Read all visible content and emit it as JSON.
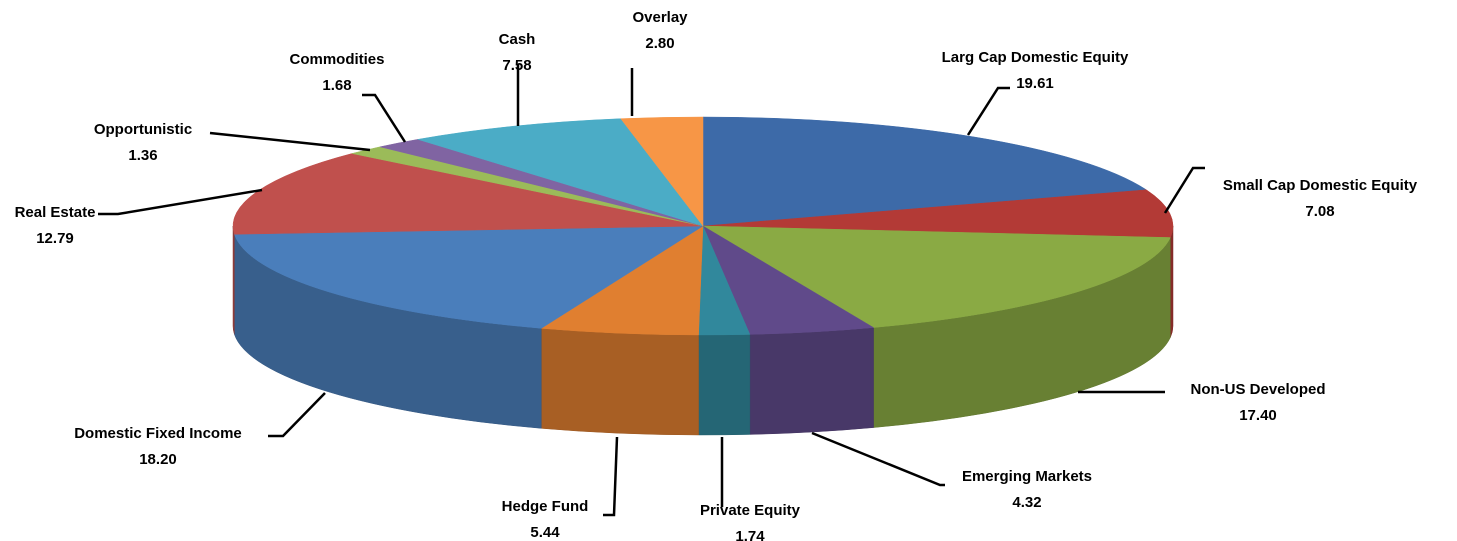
{
  "chart_data": {
    "type": "pie",
    "categories": [
      "Larg Cap Domestic Equity",
      "Small Cap Domestic Equity",
      "Non-US Developed",
      "Emerging Markets",
      "Private Equity",
      "Hedge Fund",
      "Domestic Fixed Income",
      "Real Estate",
      "Opportunistic",
      "Commodities",
      "Cash",
      "Overlay"
    ],
    "values": [
      19.61,
      7.08,
      17.4,
      4.32,
      1.74,
      5.44,
      18.2,
      12.79,
      1.36,
      1.68,
      7.58,
      2.8
    ],
    "value_labels": [
      "19.61",
      "7.08",
      "17.40",
      "4.32",
      "1.74",
      "5.44",
      "18.20",
      "12.79",
      "1.36",
      "1.68",
      "7.58",
      "2.80"
    ],
    "colors": [
      "#3d6aa8",
      "#b33a36",
      "#8aaa44",
      "#604a8a",
      "#31889c",
      "#e07f30",
      "#4a7ebb",
      "#c0504d",
      "#9bbb59",
      "#8064a2",
      "#4bacc6",
      "#f79646"
    ]
  }
}
